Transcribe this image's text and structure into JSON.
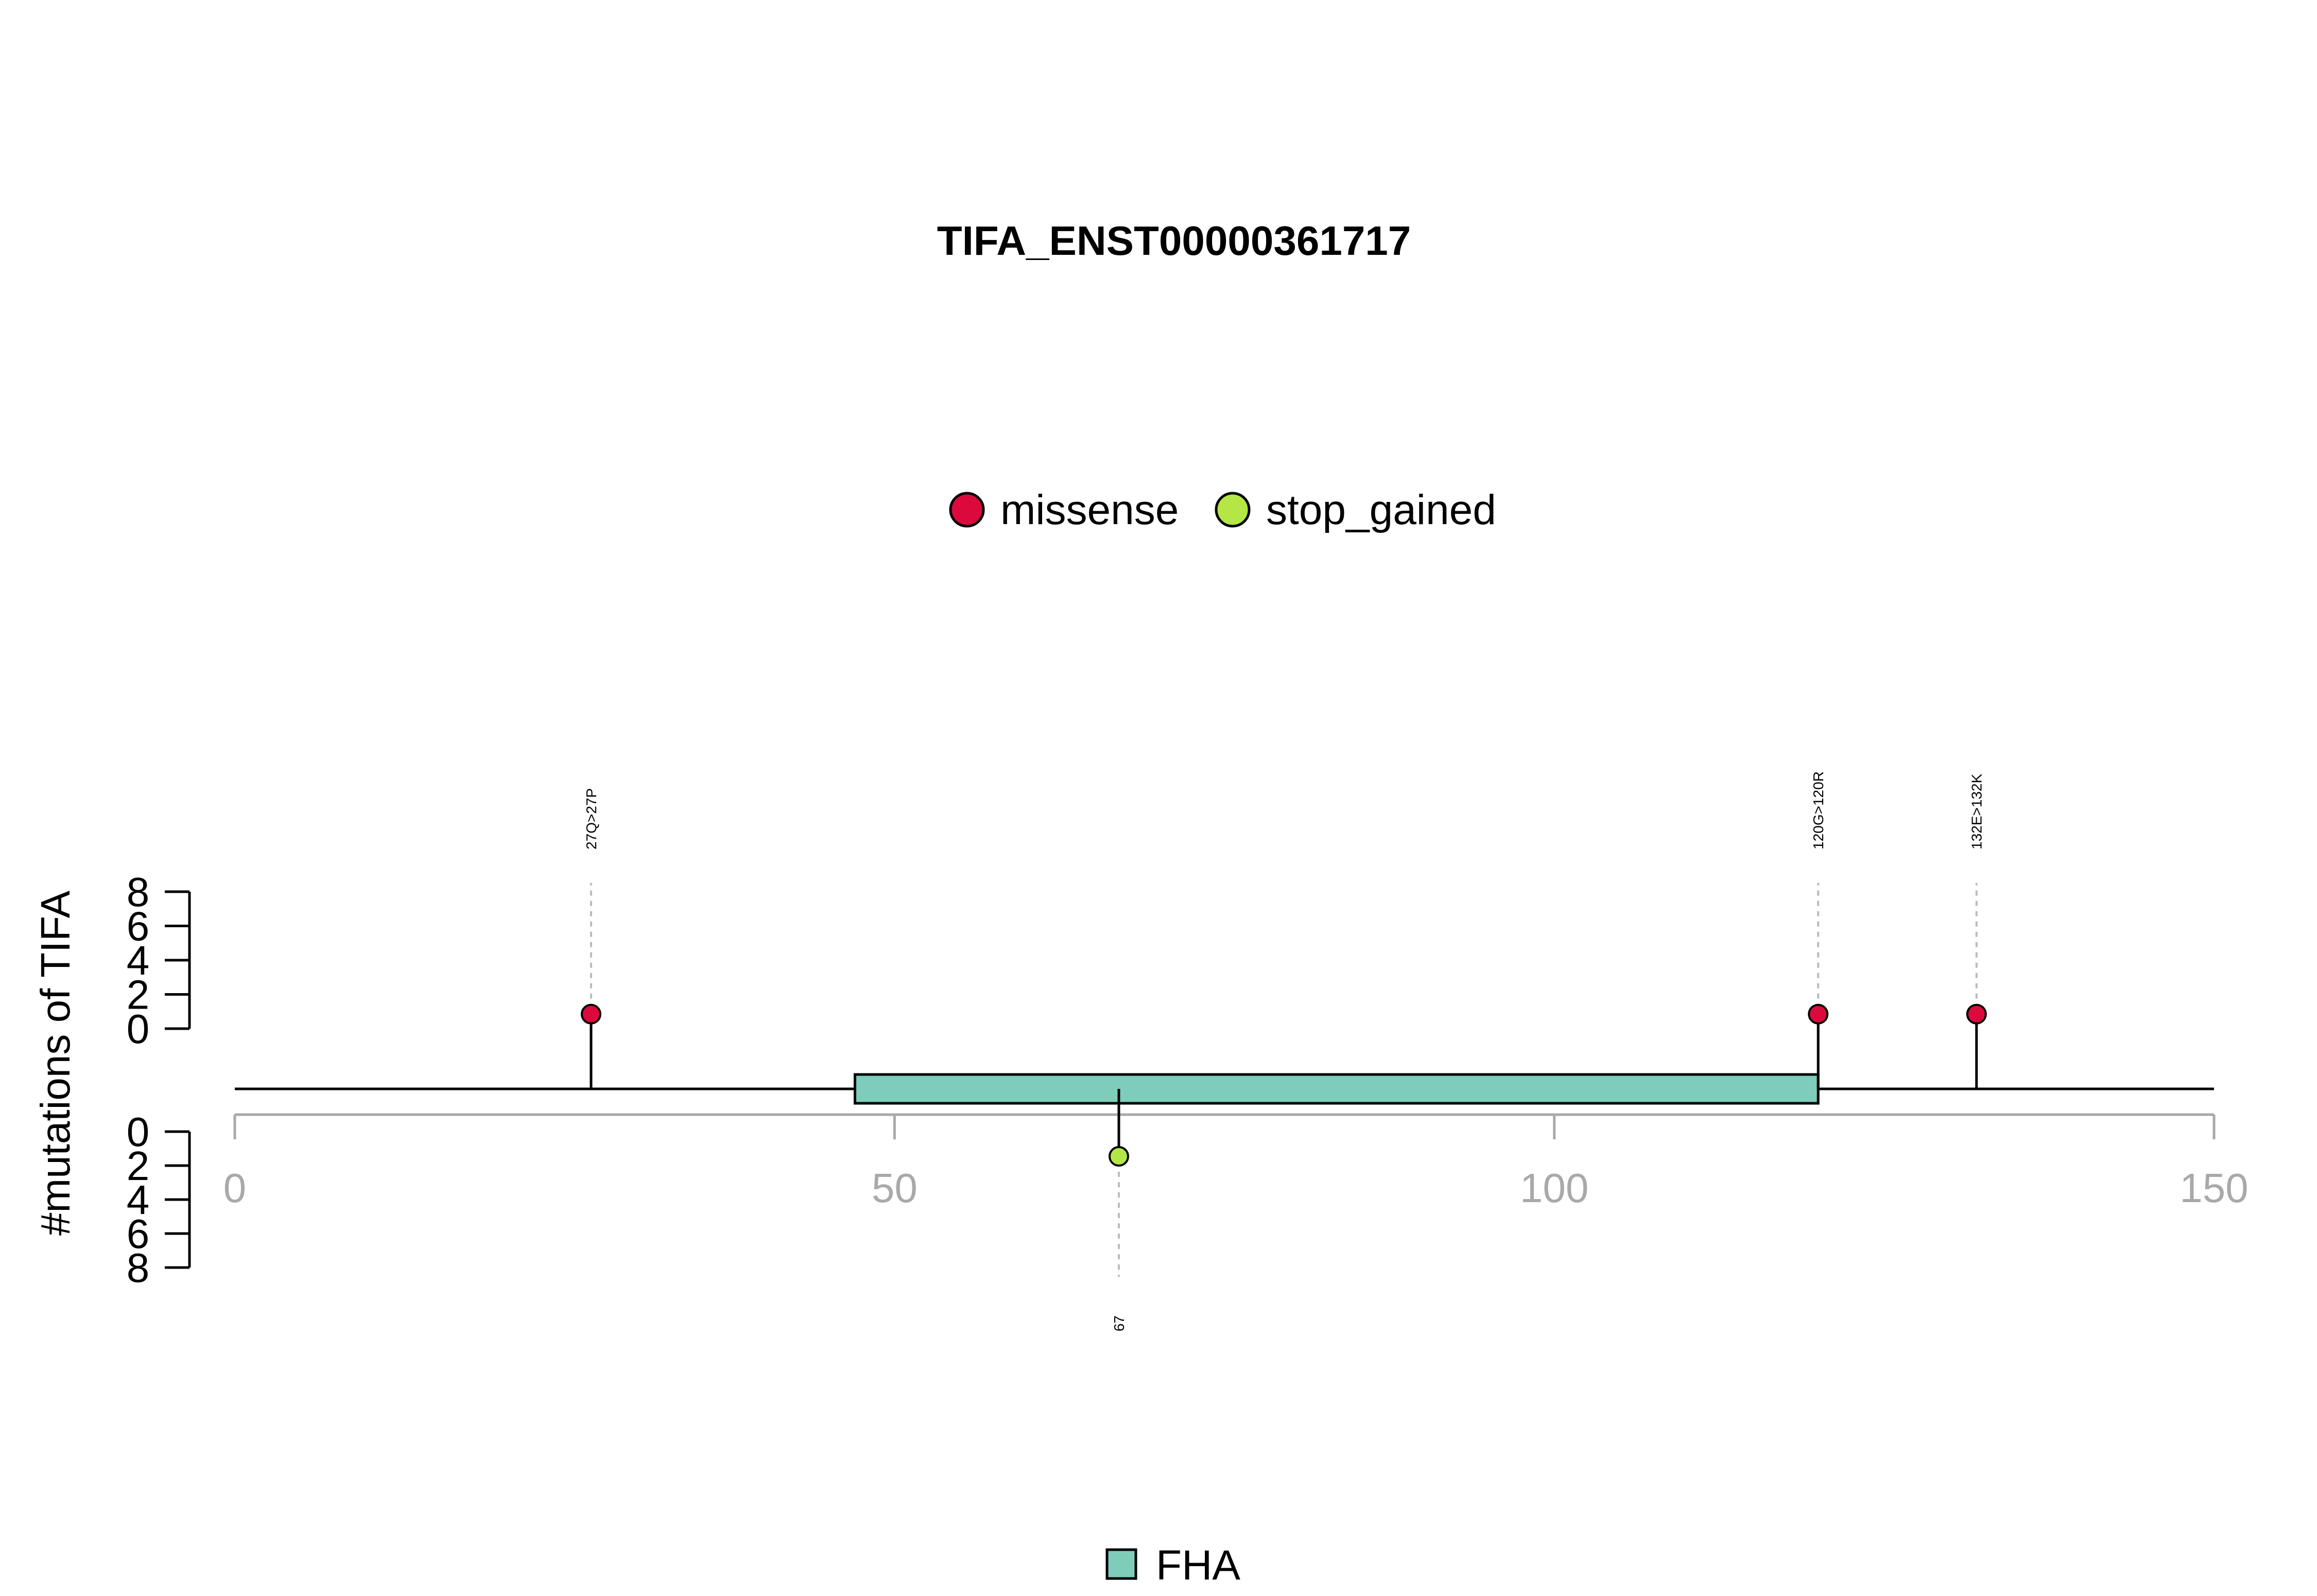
{
  "chart_data": {
    "type": "lollipop",
    "title": "TIFA_ENST00000361717",
    "ylabel": "#mutations of TIFA",
    "xlim": [
      0,
      150
    ],
    "x_ticks": [
      0,
      50,
      100,
      150
    ],
    "y_ticks": [
      0,
      2,
      4,
      6,
      8
    ],
    "ylim": [
      0,
      8
    ],
    "legend": {
      "placement": "top-center",
      "items": [
        {
          "name": "missense",
          "color": "#dc0a3c"
        },
        {
          "name": "stop_gained",
          "color": "#b4e646"
        }
      ]
    },
    "domain_legend": {
      "placement": "bottom-center",
      "items": [
        {
          "name": "FHA",
          "color": "#7ecdbb"
        }
      ]
    },
    "domains": [
      {
        "name": "FHA",
        "start": 47,
        "end": 120,
        "color": "#7ecdbb"
      }
    ],
    "mutations": [
      {
        "position": 27,
        "count": 1,
        "type": "missense",
        "label": "27Q>27P",
        "side": "top"
      },
      {
        "position": 120,
        "count": 1,
        "type": "missense",
        "label": "120G>120R",
        "side": "top"
      },
      {
        "position": 132,
        "count": 1,
        "type": "missense",
        "label": "132E>132K",
        "side": "top"
      },
      {
        "position": 67,
        "count": 1,
        "type": "stop_gained",
        "label": "67",
        "side": "bottom"
      }
    ]
  }
}
